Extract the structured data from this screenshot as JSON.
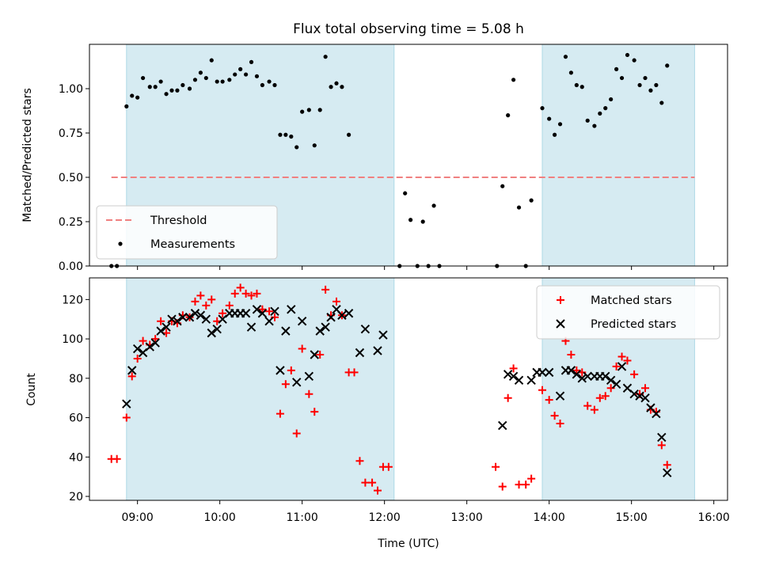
{
  "chart_data": [
    {
      "type": "scatter",
      "title": "Flux total observing time = 5.08 h",
      "xlabel": "",
      "ylabel": "Matched/Predicted stars",
      "ylim": [
        0.0,
        1.25
      ],
      "yticks": [
        0.0,
        0.25,
        0.5,
        0.75,
        1.0
      ],
      "ytick_labels": [
        "0.00",
        "0.25",
        "0.50",
        "0.75",
        "1.00"
      ],
      "xlim": [
        "08:25",
        "16:10"
      ],
      "legend": {
        "placement": "lower-left",
        "entries": [
          "Threshold",
          "Measurements"
        ]
      },
      "shaded_spans": [
        [
          "08:52",
          "12:07"
        ],
        [
          "13:55",
          "15:46"
        ]
      ],
      "threshold": {
        "name": "Threshold",
        "value": 0.5,
        "x_range": [
          "08:41",
          "15:46"
        ],
        "color": "#f08080",
        "style": "dashed"
      },
      "series": [
        {
          "name": "Measurements",
          "color": "#000000",
          "points": [
            [
              "08:41",
              0.0
            ],
            [
              "08:45",
              0.0
            ],
            [
              "08:52",
              0.9
            ],
            [
              "08:56",
              0.96
            ],
            [
              "09:00",
              0.95
            ],
            [
              "09:04",
              1.06
            ],
            [
              "09:09",
              1.01
            ],
            [
              "09:13",
              1.01
            ],
            [
              "09:17",
              1.04
            ],
            [
              "09:21",
              0.97
            ],
            [
              "09:25",
              0.99
            ],
            [
              "09:29",
              0.99
            ],
            [
              "09:33",
              1.02
            ],
            [
              "09:38",
              1.0
            ],
            [
              "09:42",
              1.05
            ],
            [
              "09:46",
              1.09
            ],
            [
              "09:50",
              1.06
            ],
            [
              "09:54",
              1.16
            ],
            [
              "09:58",
              1.04
            ],
            [
              "10:02",
              1.04
            ],
            [
              "10:07",
              1.05
            ],
            [
              "10:11",
              1.08
            ],
            [
              "10:15",
              1.11
            ],
            [
              "10:19",
              1.08
            ],
            [
              "10:23",
              1.15
            ],
            [
              "10:27",
              1.07
            ],
            [
              "10:31",
              1.02
            ],
            [
              "10:36",
              1.04
            ],
            [
              "10:40",
              1.02
            ],
            [
              "10:44",
              0.74
            ],
            [
              "10:48",
              0.74
            ],
            [
              "10:52",
              0.73
            ],
            [
              "10:56",
              0.67
            ],
            [
              "11:00",
              0.87
            ],
            [
              "11:05",
              0.88
            ],
            [
              "11:09",
              0.68
            ],
            [
              "11:13",
              0.88
            ],
            [
              "11:17",
              1.18
            ],
            [
              "11:21",
              1.01
            ],
            [
              "11:25",
              1.03
            ],
            [
              "11:29",
              1.01
            ],
            [
              "11:34",
              0.74
            ],
            [
              "12:11",
              0.0
            ],
            [
              "12:15",
              0.41
            ],
            [
              "12:19",
              0.26
            ],
            [
              "12:24",
              0.0
            ],
            [
              "12:28",
              0.25
            ],
            [
              "12:32",
              0.0
            ],
            [
              "12:36",
              0.34
            ],
            [
              "12:40",
              0.0
            ],
            [
              "13:22",
              0.0
            ],
            [
              "13:26",
              0.45
            ],
            [
              "13:30",
              0.85
            ],
            [
              "13:34",
              1.05
            ],
            [
              "13:38",
              0.33
            ],
            [
              "13:43",
              0.0
            ],
            [
              "13:47",
              0.37
            ],
            [
              "13:55",
              0.89
            ],
            [
              "14:00",
              0.83
            ],
            [
              "14:04",
              0.74
            ],
            [
              "14:08",
              0.8
            ],
            [
              "14:12",
              1.18
            ],
            [
              "14:16",
              1.09
            ],
            [
              "14:20",
              1.02
            ],
            [
              "14:24",
              1.01
            ],
            [
              "14:28",
              0.82
            ],
            [
              "14:33",
              0.79
            ],
            [
              "14:37",
              0.86
            ],
            [
              "14:41",
              0.89
            ],
            [
              "14:45",
              0.94
            ],
            [
              "14:49",
              1.11
            ],
            [
              "14:53",
              1.06
            ],
            [
              "14:57",
              1.19
            ],
            [
              "15:02",
              1.16
            ],
            [
              "15:06",
              1.02
            ],
            [
              "15:10",
              1.06
            ],
            [
              "15:14",
              0.99
            ],
            [
              "15:18",
              1.02
            ],
            [
              "15:22",
              0.92
            ],
            [
              "15:26",
              1.13
            ]
          ]
        }
      ]
    },
    {
      "type": "scatter",
      "title": "",
      "xlabel": "Time (UTC)",
      "ylabel": "Count",
      "ylim": [
        18,
        131
      ],
      "yticks": [
        20,
        40,
        60,
        80,
        100,
        120
      ],
      "ytick_labels": [
        "20",
        "40",
        "60",
        "80",
        "100",
        "120"
      ],
      "xlim": [
        "08:25",
        "16:10"
      ],
      "xticks": [
        "09:00",
        "10:00",
        "11:00",
        "12:00",
        "13:00",
        "14:00",
        "15:00",
        "16:00"
      ],
      "legend": {
        "placement": "upper-right",
        "entries": [
          "Matched stars",
          "Predicted stars"
        ]
      },
      "shaded_spans": [
        [
          "08:52",
          "12:07"
        ],
        [
          "13:55",
          "15:46"
        ]
      ],
      "series": [
        {
          "name": "Matched stars",
          "color": "#ff0000",
          "marker": "plus",
          "points": [
            [
              "08:41",
              39
            ],
            [
              "08:45",
              39
            ],
            [
              "08:52",
              60
            ],
            [
              "08:56",
              81
            ],
            [
              "09:00",
              90
            ],
            [
              "09:04",
              99
            ],
            [
              "09:09",
              97
            ],
            [
              "09:13",
              100
            ],
            [
              "09:17",
              109
            ],
            [
              "09:21",
              103
            ],
            [
              "09:25",
              109
            ],
            [
              "09:29",
              108
            ],
            [
              "09:33",
              112
            ],
            [
              "09:38",
              111
            ],
            [
              "09:42",
              119
            ],
            [
              "09:46",
              122
            ],
            [
              "09:50",
              117
            ],
            [
              "09:54",
              120
            ],
            [
              "09:58",
              109
            ],
            [
              "10:02",
              113
            ],
            [
              "10:07",
              117
            ],
            [
              "10:11",
              123
            ],
            [
              "10:15",
              126
            ],
            [
              "10:19",
              123
            ],
            [
              "10:23",
              122
            ],
            [
              "10:27",
              123
            ],
            [
              "10:31",
              115
            ],
            [
              "10:36",
              114
            ],
            [
              "10:40",
              111
            ],
            [
              "10:44",
              62
            ],
            [
              "10:48",
              77
            ],
            [
              "10:52",
              84
            ],
            [
              "10:56",
              52
            ],
            [
              "11:00",
              95
            ],
            [
              "11:05",
              72
            ],
            [
              "11:09",
              63
            ],
            [
              "11:13",
              92
            ],
            [
              "11:17",
              125
            ],
            [
              "11:21",
              112
            ],
            [
              "11:25",
              119
            ],
            [
              "11:29",
              112
            ],
            [
              "11:34",
              83
            ],
            [
              "11:38",
              83
            ],
            [
              "11:42",
              38
            ],
            [
              "11:46",
              27
            ],
            [
              "11:51",
              27
            ],
            [
              "11:55",
              23
            ],
            [
              "11:59",
              35
            ],
            [
              "12:03",
              35
            ],
            [
              "13:21",
              35
            ],
            [
              "13:26",
              25
            ],
            [
              "13:30",
              70
            ],
            [
              "13:34",
              85
            ],
            [
              "13:38",
              26
            ],
            [
              "13:43",
              26
            ],
            [
              "13:47",
              29
            ],
            [
              "13:55",
              74
            ],
            [
              "14:00",
              69
            ],
            [
              "14:04",
              61
            ],
            [
              "14:08",
              57
            ],
            [
              "14:12",
              99
            ],
            [
              "14:16",
              92
            ],
            [
              "14:20",
              84
            ],
            [
              "14:24",
              83
            ],
            [
              "14:28",
              66
            ],
            [
              "14:33",
              64
            ],
            [
              "14:37",
              70
            ],
            [
              "14:41",
              71
            ],
            [
              "14:45",
              75
            ],
            [
              "14:49",
              86
            ],
            [
              "14:53",
              91
            ],
            [
              "14:57",
              89
            ],
            [
              "15:02",
              82
            ],
            [
              "15:06",
              72
            ],
            [
              "15:10",
              75
            ],
            [
              "15:14",
              64
            ],
            [
              "15:18",
              63
            ],
            [
              "15:22",
              46
            ],
            [
              "15:26",
              36
            ]
          ]
        },
        {
          "name": "Predicted stars",
          "color": "#000000",
          "marker": "x",
          "points": [
            [
              "08:52",
              67
            ],
            [
              "08:56",
              84
            ],
            [
              "09:00",
              95
            ],
            [
              "09:04",
              93
            ],
            [
              "09:09",
              96
            ],
            [
              "09:13",
              98
            ],
            [
              "09:17",
              104
            ],
            [
              "09:21",
              106
            ],
            [
              "09:25",
              110
            ],
            [
              "09:29",
              109
            ],
            [
              "09:33",
              111
            ],
            [
              "09:38",
              111
            ],
            [
              "09:42",
              113
            ],
            [
              "09:46",
              112
            ],
            [
              "09:50",
              110
            ],
            [
              "09:54",
              103
            ],
            [
              "09:58",
              105
            ],
            [
              "10:02",
              110
            ],
            [
              "10:07",
              113
            ],
            [
              "10:11",
              113
            ],
            [
              "10:15",
              113
            ],
            [
              "10:19",
              113
            ],
            [
              "10:23",
              106
            ],
            [
              "10:27",
              115
            ],
            [
              "10:31",
              113
            ],
            [
              "10:36",
              109
            ],
            [
              "10:40",
              114
            ],
            [
              "10:44",
              84
            ],
            [
              "10:48",
              104
            ],
            [
              "10:52",
              115
            ],
            [
              "10:56",
              78
            ],
            [
              "11:00",
              109
            ],
            [
              "11:05",
              81
            ],
            [
              "11:09",
              92
            ],
            [
              "11:13",
              104
            ],
            [
              "11:17",
              106
            ],
            [
              "11:21",
              111
            ],
            [
              "11:25",
              115
            ],
            [
              "11:29",
              112
            ],
            [
              "11:34",
              113
            ],
            [
              "11:42",
              93
            ],
            [
              "11:46",
              105
            ],
            [
              "11:55",
              94
            ],
            [
              "11:59",
              102
            ],
            [
              "13:26",
              56
            ],
            [
              "13:30",
              82
            ],
            [
              "13:34",
              81
            ],
            [
              "13:38",
              79
            ],
            [
              "13:47",
              79
            ],
            [
              "13:51",
              83
            ],
            [
              "13:55",
              83
            ],
            [
              "14:00",
              83
            ],
            [
              "14:08",
              71
            ],
            [
              "14:12",
              84
            ],
            [
              "14:16",
              84
            ],
            [
              "14:20",
              82
            ],
            [
              "14:24",
              80
            ],
            [
              "14:28",
              81
            ],
            [
              "14:33",
              81
            ],
            [
              "14:37",
              81
            ],
            [
              "14:41",
              81
            ],
            [
              "14:45",
              79
            ],
            [
              "14:49",
              77
            ],
            [
              "14:53",
              86
            ],
            [
              "14:57",
              75
            ],
            [
              "15:02",
              72
            ],
            [
              "15:06",
              71
            ],
            [
              "15:10",
              70
            ],
            [
              "15:14",
              65
            ],
            [
              "15:18",
              62
            ],
            [
              "15:22",
              50
            ],
            [
              "15:26",
              32
            ]
          ]
        }
      ]
    }
  ],
  "colors": {
    "shade": "#add8e6",
    "shade_opacity": 0.5,
    "threshold": "#f08080"
  }
}
